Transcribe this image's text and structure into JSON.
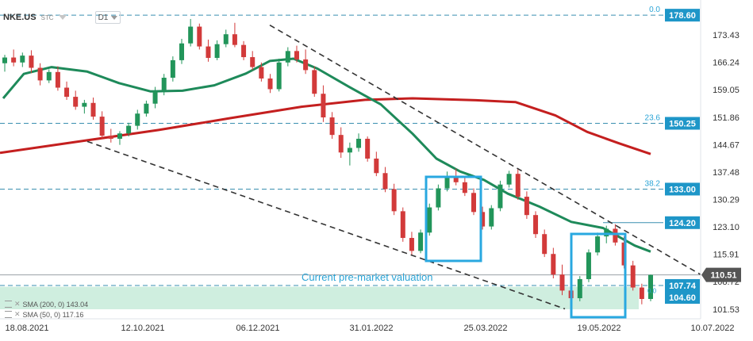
{
  "toolbar": {
    "symbol": "NKE.US",
    "instrument_type": "STC",
    "timeframe": "D1"
  },
  "legend": {
    "sma200": "SMA (200, 0) 143.04",
    "sma50": "SMA (50, 0) 117.16"
  },
  "chart_data": {
    "type": "candlestick",
    "y_axis_ticks": [
      173.43,
      166.24,
      159.05,
      151.86,
      144.67,
      137.48,
      130.29,
      123.1,
      115.91,
      108.72,
      101.53
    ],
    "ylim": [
      99.0,
      180.5
    ],
    "x_axis_ticks": [
      "18.08.2021",
      "12.10.2021",
      "06.12.2021",
      "31.01.2022",
      "25.03.2022",
      "19.05.2022",
      "10.07.2022"
    ],
    "current_price": 110.51,
    "price_tags": [
      {
        "value": 178.6,
        "fib": "0.0"
      },
      {
        "value": 150.25,
        "fib": "23.6"
      },
      {
        "value": 133.0,
        "fib": "38.2"
      },
      {
        "value": 124.2,
        "fib": ""
      },
      {
        "value": 107.74,
        "fib": ""
      },
      {
        "value": 104.6,
        "fib": ""
      }
    ],
    "annotations": {
      "premarket_label": "Current pre-market valuation",
      "premarket_value": 107.74,
      "fib_small": "0.0"
    },
    "series": [
      {
        "name": "SMA (200, 0)",
        "color": "#c41f1f",
        "points": [
          [
            0,
            142.5
          ],
          [
            110,
            145.8
          ],
          [
            200,
            148.5
          ],
          [
            290,
            151.6
          ],
          [
            380,
            154.6
          ],
          [
            460,
            156.4
          ],
          [
            520,
            156.8
          ],
          [
            600,
            156.3
          ],
          [
            650,
            155.8
          ],
          [
            700,
            152.3
          ],
          [
            740,
            148.0
          ],
          [
            780,
            145.0
          ],
          [
            820,
            142.2
          ]
        ]
      },
      {
        "name": "SMA (50, 0)",
        "color": "#1e8a5a",
        "points": [
          [
            4,
            156.8
          ],
          [
            30,
            163.2
          ],
          [
            65,
            165.0
          ],
          [
            110,
            163.8
          ],
          [
            150,
            160.8
          ],
          [
            190,
            158.6
          ],
          [
            230,
            158.8
          ],
          [
            270,
            160.2
          ],
          [
            310,
            163.3
          ],
          [
            340,
            166.6
          ],
          [
            370,
            167.2
          ],
          [
            400,
            164.6
          ],
          [
            440,
            159.8
          ],
          [
            480,
            155.2
          ],
          [
            520,
            147.5
          ],
          [
            550,
            141.0
          ],
          [
            580,
            137.6
          ],
          [
            610,
            135.4
          ],
          [
            640,
            131.8
          ],
          [
            680,
            128.4
          ],
          [
            720,
            124.4
          ],
          [
            760,
            122.8
          ],
          [
            800,
            118.2
          ],
          [
            820,
            116.6
          ]
        ]
      }
    ],
    "candles": [
      {
        "o": 166.0,
        "h": 168.2,
        "l": 163.8,
        "c": 167.5
      },
      {
        "o": 167.5,
        "h": 169.6,
        "l": 165.2,
        "c": 166.2
      },
      {
        "o": 166.2,
        "h": 168.8,
        "l": 165.0,
        "c": 168.0
      },
      {
        "o": 168.0,
        "h": 169.4,
        "l": 163.4,
        "c": 164.8
      },
      {
        "o": 164.8,
        "h": 166.0,
        "l": 160.2,
        "c": 161.5
      },
      {
        "o": 161.5,
        "h": 164.4,
        "l": 160.8,
        "c": 163.7
      },
      {
        "o": 163.7,
        "h": 165.2,
        "l": 158.8,
        "c": 159.6
      },
      {
        "o": 159.6,
        "h": 161.2,
        "l": 156.4,
        "c": 157.2
      },
      {
        "o": 157.2,
        "h": 158.8,
        "l": 153.8,
        "c": 154.6
      },
      {
        "o": 154.6,
        "h": 156.4,
        "l": 152.8,
        "c": 155.6
      },
      {
        "o": 155.6,
        "h": 157.0,
        "l": 151.2,
        "c": 152.0
      },
      {
        "o": 152.0,
        "h": 153.4,
        "l": 146.2,
        "c": 147.0
      },
      {
        "o": 147.0,
        "h": 148.8,
        "l": 145.2,
        "c": 146.2
      },
      {
        "o": 146.2,
        "h": 148.2,
        "l": 144.6,
        "c": 147.6
      },
      {
        "o": 147.6,
        "h": 150.4,
        "l": 146.8,
        "c": 149.6
      },
      {
        "o": 149.6,
        "h": 153.8,
        "l": 148.6,
        "c": 152.8
      },
      {
        "o": 152.8,
        "h": 156.2,
        "l": 152.0,
        "c": 155.4
      },
      {
        "o": 155.4,
        "h": 159.8,
        "l": 154.2,
        "c": 158.8
      },
      {
        "o": 158.8,
        "h": 163.2,
        "l": 157.6,
        "c": 162.2
      },
      {
        "o": 162.2,
        "h": 167.8,
        "l": 161.2,
        "c": 166.8
      },
      {
        "o": 166.8,
        "h": 172.4,
        "l": 165.8,
        "c": 171.2
      },
      {
        "o": 171.2,
        "h": 177.6,
        "l": 170.4,
        "c": 175.6
      },
      {
        "o": 175.6,
        "h": 176.4,
        "l": 169.6,
        "c": 170.4
      },
      {
        "o": 170.4,
        "h": 172.2,
        "l": 166.4,
        "c": 167.4
      },
      {
        "o": 167.4,
        "h": 172.0,
        "l": 166.8,
        "c": 171.0
      },
      {
        "o": 171.0,
        "h": 174.8,
        "l": 170.2,
        "c": 173.6
      },
      {
        "o": 173.6,
        "h": 176.6,
        "l": 170.2,
        "c": 170.8
      },
      {
        "o": 170.8,
        "h": 171.8,
        "l": 166.8,
        "c": 167.6
      },
      {
        "o": 167.6,
        "h": 169.2,
        "l": 164.2,
        "c": 165.0
      },
      {
        "o": 165.0,
        "h": 166.2,
        "l": 161.2,
        "c": 162.0
      },
      {
        "o": 162.0,
        "h": 163.2,
        "l": 158.2,
        "c": 159.2
      },
      {
        "o": 159.2,
        "h": 167.2,
        "l": 158.6,
        "c": 166.2
      },
      {
        "o": 166.2,
        "h": 170.2,
        "l": 165.2,
        "c": 169.2
      },
      {
        "o": 169.2,
        "h": 170.6,
        "l": 166.2,
        "c": 167.0
      },
      {
        "o": 167.0,
        "h": 169.6,
        "l": 163.2,
        "c": 164.2
      },
      {
        "o": 164.2,
        "h": 165.2,
        "l": 157.2,
        "c": 158.0
      },
      {
        "o": 158.0,
        "h": 160.2,
        "l": 150.6,
        "c": 151.8
      },
      {
        "o": 151.8,
        "h": 153.2,
        "l": 146.2,
        "c": 147.2
      },
      {
        "o": 147.2,
        "h": 149.2,
        "l": 141.2,
        "c": 142.6
      },
      {
        "o": 142.6,
        "h": 145.2,
        "l": 139.2,
        "c": 143.8
      },
      {
        "o": 143.8,
        "h": 147.6,
        "l": 142.8,
        "c": 146.2
      },
      {
        "o": 146.2,
        "h": 146.8,
        "l": 140.2,
        "c": 141.0
      },
      {
        "o": 141.0,
        "h": 142.8,
        "l": 136.4,
        "c": 137.2
      },
      {
        "o": 137.2,
        "h": 138.8,
        "l": 132.2,
        "c": 133.0
      },
      {
        "o": 133.0,
        "h": 134.4,
        "l": 126.2,
        "c": 127.2
      },
      {
        "o": 127.2,
        "h": 128.2,
        "l": 119.2,
        "c": 120.2
      },
      {
        "o": 120.2,
        "h": 121.8,
        "l": 115.8,
        "c": 116.8
      },
      {
        "o": 116.8,
        "h": 122.4,
        "l": 116.2,
        "c": 121.6
      },
      {
        "o": 121.6,
        "h": 129.2,
        "l": 120.8,
        "c": 128.2
      },
      {
        "o": 128.2,
        "h": 134.2,
        "l": 127.4,
        "c": 133.2
      },
      {
        "o": 133.2,
        "h": 137.6,
        "l": 132.4,
        "c": 136.4
      },
      {
        "o": 136.4,
        "h": 138.4,
        "l": 134.0,
        "c": 134.8
      },
      {
        "o": 134.8,
        "h": 136.0,
        "l": 131.2,
        "c": 132.0
      },
      {
        "o": 132.0,
        "h": 133.2,
        "l": 126.2,
        "c": 127.0
      },
      {
        "o": 127.0,
        "h": 128.4,
        "l": 122.4,
        "c": 123.2
      },
      {
        "o": 123.2,
        "h": 128.8,
        "l": 122.4,
        "c": 128.0
      },
      {
        "o": 128.0,
        "h": 135.2,
        "l": 127.2,
        "c": 134.2
      },
      {
        "o": 134.2,
        "h": 137.8,
        "l": 133.4,
        "c": 137.0
      },
      {
        "o": 137.0,
        "h": 138.2,
        "l": 130.2,
        "c": 131.0
      },
      {
        "o": 131.0,
        "h": 132.4,
        "l": 125.2,
        "c": 126.2
      },
      {
        "o": 126.2,
        "h": 127.2,
        "l": 120.2,
        "c": 121.2
      },
      {
        "o": 121.2,
        "h": 122.4,
        "l": 115.2,
        "c": 116.0
      },
      {
        "o": 116.0,
        "h": 117.6,
        "l": 109.6,
        "c": 110.6
      },
      {
        "o": 110.6,
        "h": 113.2,
        "l": 105.2,
        "c": 106.4
      },
      {
        "o": 106.4,
        "h": 107.6,
        "l": 103.0,
        "c": 104.4
      },
      {
        "o": 104.4,
        "h": 110.2,
        "l": 103.6,
        "c": 109.4
      },
      {
        "o": 109.4,
        "h": 117.2,
        "l": 108.6,
        "c": 116.4
      },
      {
        "o": 116.4,
        "h": 121.6,
        "l": 115.6,
        "c": 120.6
      },
      {
        "o": 120.6,
        "h": 123.4,
        "l": 118.8,
        "c": 122.6
      },
      {
        "o": 122.6,
        "h": 123.8,
        "l": 118.2,
        "c": 119.0
      },
      {
        "o": 119.0,
        "h": 120.6,
        "l": 112.2,
        "c": 113.0
      },
      {
        "o": 113.0,
        "h": 114.2,
        "l": 106.4,
        "c": 107.2
      },
      {
        "o": 107.2,
        "h": 108.2,
        "l": 102.8,
        "c": 104.2
      },
      {
        "o": 104.2,
        "h": 110.6,
        "l": 103.6,
        "c": 110.51
      }
    ]
  }
}
